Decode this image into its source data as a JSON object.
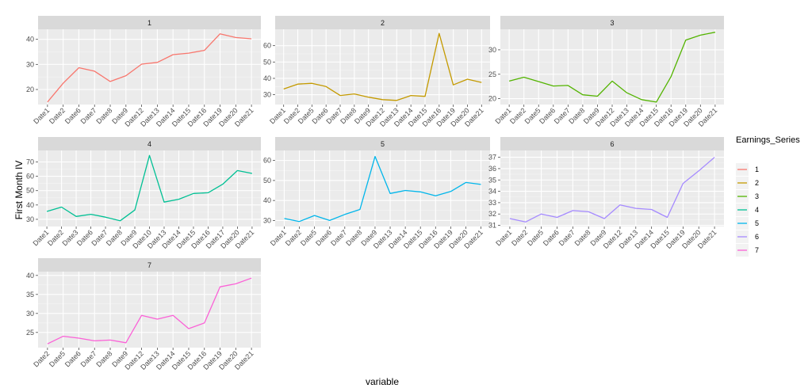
{
  "chart_data": {
    "type": "line",
    "layout": "facet_wrap",
    "xlabel": "variable",
    "ylabel": "First Month IV",
    "grid": true,
    "legend": {
      "title": "Earnings_Series",
      "position": "right",
      "entries": [
        "1",
        "2",
        "3",
        "4",
        "5",
        "6",
        "7"
      ]
    },
    "panels": [
      {
        "strip": "1",
        "color": "#F8766D",
        "ylim": [
          14,
          44
        ],
        "yticks": [
          20,
          30,
          40
        ],
        "x": [
          "Date1",
          "Date2",
          "Date6",
          "Date7",
          "Date8",
          "Date9",
          "Date12",
          "Date13",
          "Date14",
          "Date15",
          "Date16",
          "Date19",
          "Date20",
          "Date21"
        ],
        "y": [
          15,
          22.5,
          28.7,
          27.3,
          23.2,
          25.5,
          30.1,
          30.8,
          33.9,
          34.5,
          35.6,
          42.2,
          40.7,
          40.2
        ]
      },
      {
        "strip": "2",
        "color": "#C49A00",
        "ylim": [
          24,
          70
        ],
        "yticks": [
          30,
          40,
          50,
          60
        ],
        "x": [
          "Date1",
          "Date2",
          "Date5",
          "Date6",
          "Date7",
          "Date8",
          "Date9",
          "Date12",
          "Date13",
          "Date14",
          "Date15",
          "Date16",
          "Date19",
          "Date20",
          "Date21"
        ],
        "y": [
          33.5,
          36.5,
          37,
          35,
          29.5,
          30.5,
          28.5,
          27,
          26.5,
          29.5,
          29,
          67.5,
          36,
          39.5,
          37.5
        ]
      },
      {
        "strip": "3",
        "color": "#53B400",
        "ylim": [
          18.8,
          34.2
        ],
        "yticks": [
          20,
          25,
          30
        ],
        "x": [
          "Date1",
          "Date2",
          "Date5",
          "Date6",
          "Date7",
          "Date8",
          "Date9",
          "Date12",
          "Date13",
          "Date14",
          "Date15",
          "Date16",
          "Date19",
          "Date20",
          "Date21"
        ],
        "y": [
          23.6,
          24.4,
          23.5,
          22.6,
          22.7,
          20.8,
          20.5,
          23.6,
          21.2,
          19.8,
          19.3,
          24.5,
          32,
          33,
          33.6
        ]
      },
      {
        "strip": "4",
        "color": "#00C094",
        "ylim": [
          25,
          78
        ],
        "yticks": [
          30,
          40,
          50,
          60,
          70
        ],
        "x": [
          "Date1",
          "Date2",
          "Date3",
          "Date6",
          "Date7",
          "Date8",
          "Date9",
          "Date10",
          "Date13",
          "Date14",
          "Date15",
          "Date16",
          "Date17",
          "Date20",
          "Date21"
        ],
        "y": [
          35.5,
          38.5,
          32,
          33.5,
          31.5,
          29,
          36.5,
          74.5,
          42,
          44,
          48,
          48.5,
          54.5,
          64,
          62
        ]
      },
      {
        "strip": "5",
        "color": "#00B6EB",
        "ylim": [
          27,
          65
        ],
        "yticks": [
          30,
          40,
          50,
          60
        ],
        "x": [
          "Date1",
          "Date2",
          "Date5",
          "Date6",
          "Date7",
          "Date8",
          "Date9",
          "Date13",
          "Date14",
          "Date15",
          "Date16",
          "Date19",
          "Date20",
          "Date21"
        ],
        "y": [
          31,
          29.5,
          32.5,
          30,
          33,
          35.5,
          62,
          43.5,
          45,
          44.3,
          42.3,
          44.5,
          49,
          48
        ]
      },
      {
        "strip": "6",
        "color": "#A58AFF",
        "ylim": [
          30.9,
          37.6
        ],
        "yticks": [
          31,
          32,
          33,
          34,
          35,
          36,
          37
        ],
        "x": [
          "Date1",
          "Date2",
          "Date5",
          "Date6",
          "Date7",
          "Date8",
          "Date9",
          "Date12",
          "Date13",
          "Date14",
          "Date15",
          "Date19",
          "Date20",
          "Date21"
        ],
        "y": [
          31.6,
          31.3,
          32,
          31.7,
          32.3,
          32.2,
          31.6,
          32.8,
          32.5,
          32.4,
          31.7,
          34.7,
          35.8,
          37
        ]
      },
      {
        "strip": "7",
        "color": "#FB61D7",
        "ylim": [
          21,
          41
        ],
        "yticks": [
          25,
          30,
          35,
          40
        ],
        "x": [
          "Date2",
          "Date5",
          "Date6",
          "Date7",
          "Date8",
          "Date9",
          "Date12",
          "Date13",
          "Date14",
          "Date15",
          "Date16",
          "Date19",
          "Date20",
          "Date21"
        ],
        "y": [
          22,
          24,
          23.5,
          22.8,
          23,
          22.3,
          29.5,
          28.5,
          29.5,
          26,
          27.5,
          37,
          37.8,
          39.3
        ]
      }
    ]
  }
}
